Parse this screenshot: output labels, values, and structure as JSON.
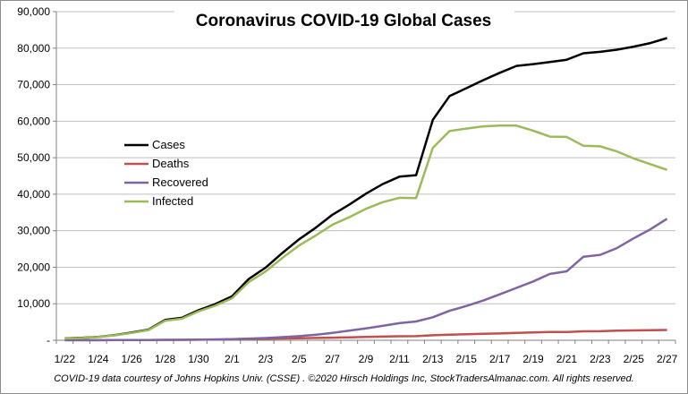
{
  "chart_data": {
    "type": "line",
    "title": "Coronavirus COVID-19 Global Cases",
    "ylim": [
      0,
      90000
    ],
    "yticks": [
      "-",
      "10,000",
      "20,000",
      "30,000",
      "40,000",
      "50,000",
      "60,000",
      "70,000",
      "80,000",
      "90,000"
    ],
    "x": [
      "1/22",
      "1/23",
      "1/24",
      "1/25",
      "1/26",
      "1/27",
      "1/28",
      "1/29",
      "1/30",
      "1/31",
      "2/1",
      "2/2",
      "2/3",
      "2/4",
      "2/5",
      "2/6",
      "2/7",
      "2/8",
      "2/9",
      "2/10",
      "2/11",
      "2/12",
      "2/13",
      "2/14",
      "2/15",
      "2/16",
      "2/17",
      "2/18",
      "2/19",
      "2/20",
      "2/21",
      "2/22",
      "2/23",
      "2/24",
      "2/25",
      "2/26",
      "2/27"
    ],
    "xtick_labels": [
      "1/22",
      "1/24",
      "1/26",
      "1/28",
      "1/30",
      "2/1",
      "2/3",
      "2/5",
      "2/7",
      "2/9",
      "2/11",
      "2/13",
      "2/15",
      "2/17",
      "2/19",
      "2/21",
      "2/23",
      "2/25",
      "2/27"
    ],
    "grid": true,
    "legend_position": "left-center",
    "series": [
      {
        "name": "Cases",
        "color": "#000000",
        "values": [
          555,
          654,
          941,
          1434,
          2118,
          2927,
          5578,
          6166,
          8234,
          9927,
          12038,
          16787,
          19881,
          23892,
          27635,
          30817,
          34391,
          37120,
          40150,
          42762,
          44802,
          45221,
          60368,
          66886,
          69032,
          71226,
          73260,
          75138,
          75641,
          76199,
          76843,
          78599,
          78985,
          79570,
          80415,
          81397,
          82756
        ]
      },
      {
        "name": "Deaths",
        "color": "#c0504d",
        "values": [
          17,
          18,
          26,
          42,
          56,
          82,
          131,
          133,
          171,
          213,
          259,
          362,
          426,
          492,
          564,
          634,
          719,
          806,
          906,
          1013,
          1113,
          1118,
          1371,
          1523,
          1666,
          1770,
          1868,
          2007,
          2122,
          2247,
          2251,
          2458,
          2469,
          2629,
          2708,
          2770,
          2814
        ]
      },
      {
        "name": "Recovered",
        "color": "#8064a2",
        "values": [
          28,
          30,
          36,
          39,
          52,
          61,
          107,
          126,
          143,
          222,
          284,
          472,
          623,
          852,
          1124,
          1487,
          2011,
          2616,
          3244,
          3946,
          4683,
          5150,
          6295,
          8058,
          9395,
          10865,
          12583,
          14352,
          16121,
          18177,
          18890,
          22886,
          23394,
          25227,
          27905,
          30384,
          33277
        ]
      },
      {
        "name": "Infected",
        "color": "#9bbb59",
        "values": [
          510,
          606,
          879,
          1353,
          2010,
          2784,
          5340,
          5907,
          7920,
          9492,
          11495,
          15953,
          18832,
          22548,
          25947,
          28696,
          31661,
          33698,
          36000,
          37803,
          39006,
          38953,
          52702,
          57305,
          57971,
          58591,
          58809,
          58779,
          57398,
          55775,
          55702,
          53255,
          53122,
          51714,
          49802,
          48243,
          46665
        ]
      }
    ],
    "footer": "COVID-19 data courtesy  of Johns Hopkins Univ. (CSSE) . ©2020 Hirsch  Holdings Inc, StockTradersAlmanac.com.  All rights reserved."
  }
}
